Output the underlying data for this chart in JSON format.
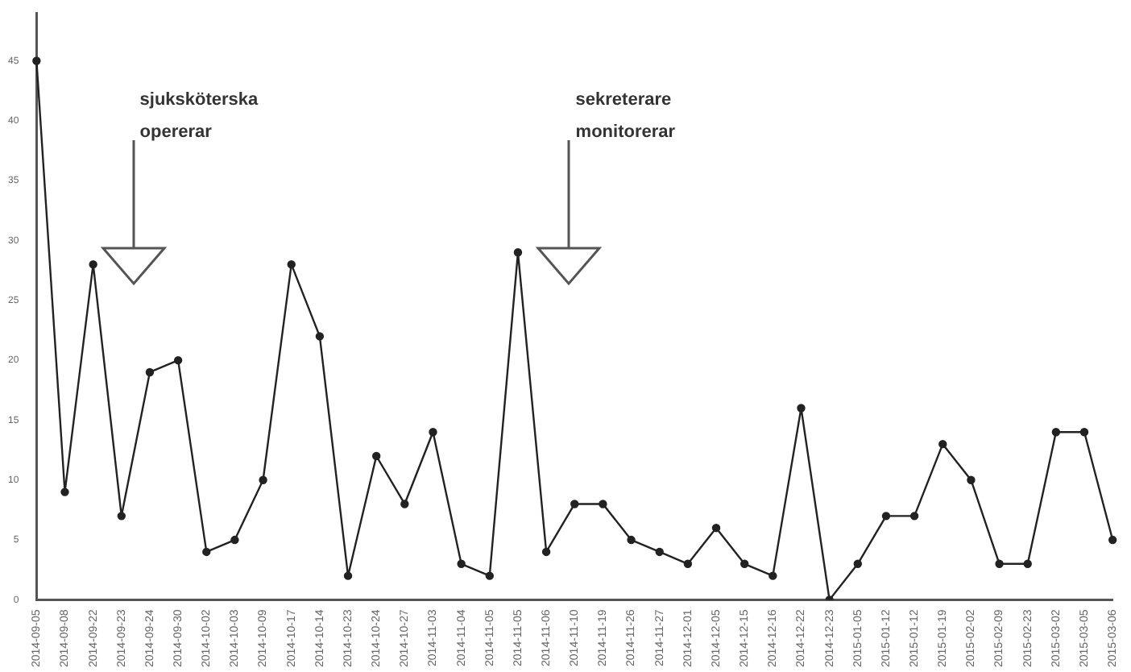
{
  "chart_data": {
    "type": "line",
    "categories": [
      "2014-09-05",
      "2014-09-08",
      "2014-09-22",
      "2014-09-23",
      "2014-09-24",
      "2014-09-30",
      "2014-10-02",
      "2014-10-03",
      "2014-10-09",
      "2014-10-17",
      "2014-10-14",
      "2014-10-23",
      "2014-10-24",
      "2014-10-27",
      "2014-11-03",
      "2014-11-04",
      "2014-11-05",
      "2014-11-05",
      "2014-11-06",
      "2014-11-10",
      "2014-11-19",
      "2014-11-26",
      "2014-11-27",
      "2014-12-01",
      "2014-12-05",
      "2014-12-15",
      "2014-12-16",
      "2014-12-22",
      "2014-12-23",
      "2015-01-05",
      "2015-01-12",
      "2015-01-12",
      "2015-01-19",
      "2015-02-02",
      "2015-02-09",
      "2015-02-23",
      "2015-03-02",
      "2015-03-05",
      "2015-03-06"
    ],
    "series": [
      {
        "color": "#222222",
        "values": [
          45,
          9,
          28,
          7,
          19,
          20,
          4,
          5,
          10,
          28,
          22,
          2,
          12,
          8,
          14,
          3,
          2,
          29,
          4,
          8,
          8,
          5,
          4,
          3,
          6,
          3,
          2,
          16,
          0,
          3,
          7,
          7,
          13,
          10,
          3,
          3,
          14,
          14,
          5
        ]
      }
    ],
    "ylim": [
      0,
      49
    ],
    "yticks": [
      0,
      5,
      10,
      15,
      20,
      25,
      30,
      35,
      40,
      45
    ],
    "grid": false,
    "legend": false,
    "marker": "circle",
    "line_style": "solid",
    "annotations": [
      "sjuksköterska\nopererar",
      "sekreterare\nmonitorerar"
    ]
  }
}
